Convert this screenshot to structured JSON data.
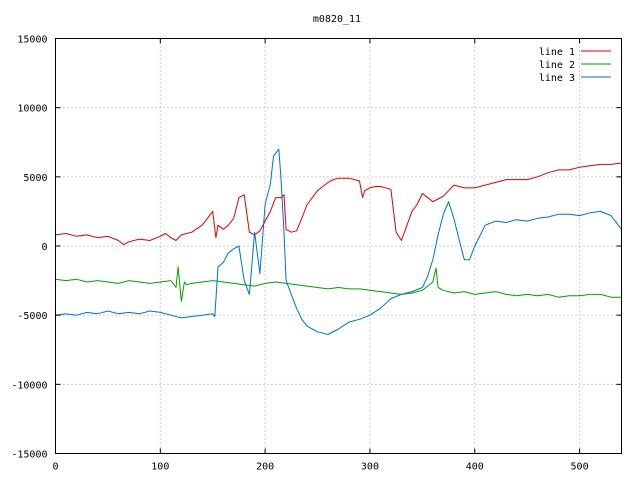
{
  "chart_data": {
    "type": "line",
    "title": "m0820_11",
    "xlabel": "",
    "ylabel": "",
    "xlim": [
      0,
      540
    ],
    "ylim": [
      -15000,
      15000
    ],
    "x_ticks": [
      "0",
      "100",
      "200",
      "300",
      "400",
      "500"
    ],
    "y_ticks": [
      "15000",
      "10000",
      "5000",
      "0",
      "-5000",
      "-10000",
      "-15000"
    ],
    "grid": true,
    "legend_position": "top-right",
    "series": [
      {
        "name": "line 1",
        "color": "#e00000",
        "x": [
          0,
          10,
          20,
          30,
          40,
          50,
          60,
          65,
          70,
          80,
          90,
          100,
          105,
          110,
          115,
          120,
          130,
          140,
          145,
          150,
          153,
          155,
          160,
          165,
          170,
          175,
          180,
          185,
          190,
          195,
          200,
          205,
          210,
          215,
          218,
          220,
          225,
          230,
          235,
          240,
          245,
          250,
          255,
          260,
          265,
          270,
          280,
          290,
          293,
          295,
          300,
          305,
          310,
          320,
          325,
          330,
          333,
          340,
          345,
          350,
          360,
          365,
          370,
          375,
          380,
          390,
          400,
          410,
          420,
          430,
          440,
          450,
          460,
          470,
          480,
          490,
          500,
          510,
          520,
          530,
          540
        ],
        "values": [
          800,
          900,
          700,
          800,
          600,
          700,
          400,
          100,
          300,
          500,
          400,
          700,
          900,
          600,
          400,
          800,
          1000,
          1500,
          2000,
          2500,
          600,
          1500,
          1200,
          1500,
          2000,
          3500,
          3700,
          1000,
          800,
          1100,
          1800,
          2500,
          3500,
          3500,
          3700,
          1200,
          1000,
          1100,
          2000,
          3000,
          3500,
          4000,
          4300,
          4600,
          4800,
          4900,
          4900,
          4700,
          3500,
          4000,
          4200,
          4300,
          4300,
          4100,
          1000,
          400,
          1000,
          2500,
          3000,
          3800,
          3200,
          3400,
          3600,
          4000,
          4400,
          4200,
          4200,
          4400,
          4600,
          4800,
          4800,
          4800,
          5000,
          5300,
          5500,
          5500,
          5700,
          5800,
          5900,
          5900,
          6000
        ]
      },
      {
        "name": "line 2",
        "color": "#00a000",
        "x": [
          0,
          10,
          20,
          30,
          40,
          50,
          60,
          70,
          80,
          90,
          100,
          110,
          115,
          117,
          120,
          123,
          125,
          130,
          140,
          150,
          160,
          170,
          180,
          190,
          200,
          210,
          220,
          230,
          240,
          250,
          260,
          270,
          280,
          290,
          300,
          310,
          320,
          330,
          340,
          350,
          360,
          363,
          365,
          370,
          380,
          390,
          400,
          410,
          420,
          430,
          440,
          450,
          460,
          470,
          480,
          490,
          500,
          510,
          520,
          530,
          540
        ],
        "values": [
          -2400,
          -2500,
          -2400,
          -2600,
          -2500,
          -2600,
          -2700,
          -2500,
          -2600,
          -2700,
          -2600,
          -2500,
          -3000,
          -1500,
          -4000,
          -2600,
          -2800,
          -2700,
          -2600,
          -2500,
          -2600,
          -2700,
          -2800,
          -2900,
          -2700,
          -2600,
          -2700,
          -2800,
          -2900,
          -3000,
          -3100,
          -3000,
          -3100,
          -3100,
          -3200,
          -3300,
          -3400,
          -3500,
          -3400,
          -3200,
          -2600,
          -1600,
          -3000,
          -3200,
          -3400,
          -3300,
          -3500,
          -3400,
          -3300,
          -3500,
          -3600,
          -3500,
          -3600,
          -3500,
          -3700,
          -3600,
          -3600,
          -3500,
          -3500,
          -3700,
          -3700
        ]
      },
      {
        "name": "line 3",
        "color": "#0070d0",
        "x": [
          0,
          10,
          20,
          30,
          40,
          50,
          60,
          70,
          80,
          90,
          100,
          110,
          120,
          130,
          140,
          150,
          152,
          155,
          160,
          165,
          170,
          175,
          180,
          185,
          190,
          195,
          200,
          205,
          208,
          210,
          213,
          215,
          218,
          220,
          225,
          230,
          235,
          240,
          250,
          260,
          270,
          280,
          290,
          300,
          310,
          320,
          330,
          340,
          350,
          355,
          360,
          365,
          370,
          375,
          380,
          385,
          390,
          395,
          400,
          410,
          420,
          430,
          440,
          450,
          460,
          470,
          480,
          490,
          500,
          510,
          520,
          530,
          540
        ],
        "values": [
          -5000,
          -4900,
          -5000,
          -4800,
          -4900,
          -4700,
          -4900,
          -4800,
          -4900,
          -4700,
          -4800,
          -5000,
          -5200,
          -5100,
          -5000,
          -4900,
          -5100,
          -1500,
          -1200,
          -500,
          -200,
          0,
          -2500,
          -3500,
          1000,
          -2000,
          3000,
          4500,
          6500,
          6700,
          7000,
          5000,
          1000,
          -2500,
          -3500,
          -4500,
          -5300,
          -5800,
          -6200,
          -6400,
          -6000,
          -5500,
          -5300,
          -5000,
          -4500,
          -3800,
          -3500,
          -3300,
          -3000,
          -2200,
          -1000,
          800,
          2300,
          3200,
          2000,
          500,
          -1000,
          -1000,
          0,
          1500,
          1800,
          1700,
          1900,
          1800,
          2000,
          2100,
          2300,
          2300,
          2200,
          2400,
          2500,
          2200,
          1200
        ]
      }
    ]
  }
}
